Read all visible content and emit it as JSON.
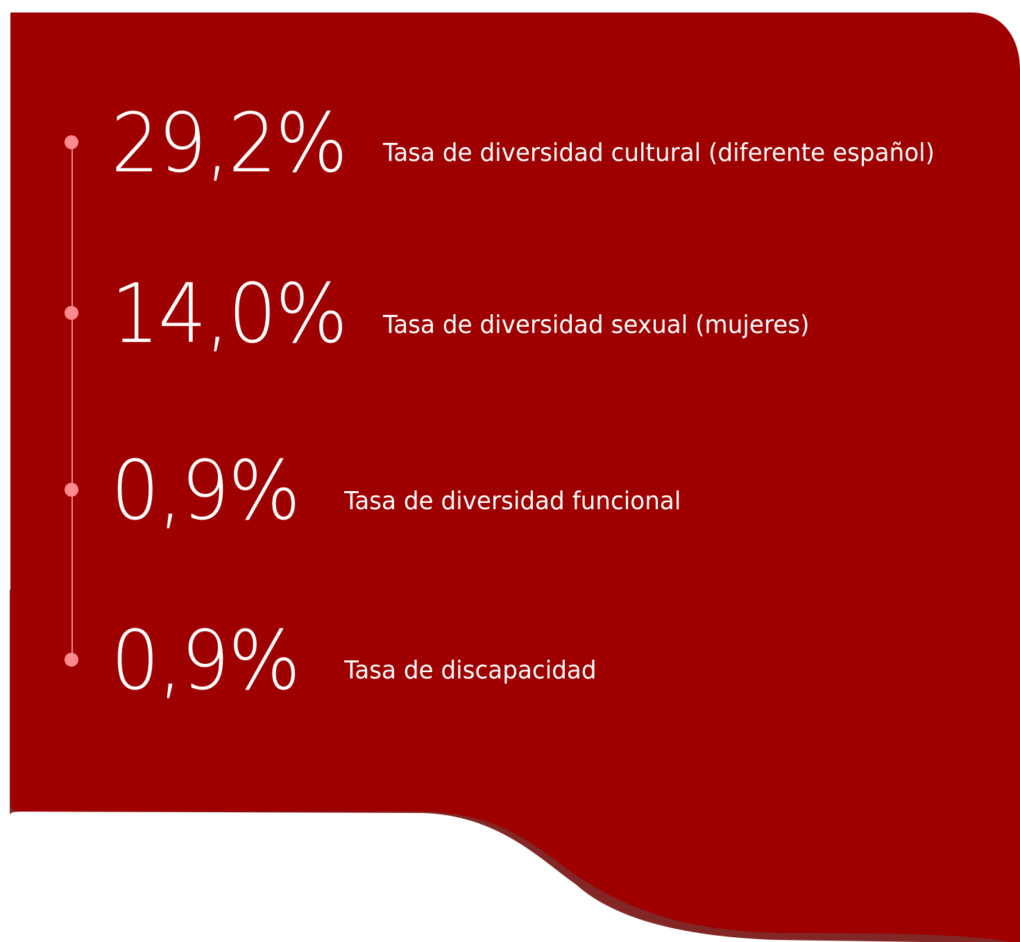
{
  "stats": [
    {
      "value": "29,2%",
      "label": "Tasa de diversidad cultural (diferente español)"
    },
    {
      "value": "14,0%",
      "label": "Tasa de diversidad sexual (mujeres)"
    },
    {
      "value": "0,9%",
      "label": "Tasa de diversidad funcional"
    },
    {
      "value": "0,9%",
      "label": "Tasa de discapacidad"
    }
  ],
  "colors": {
    "panel": "#9e0000",
    "shadow": "#822626",
    "dot": "#ff8a8e",
    "line": "#f08a8a",
    "text": "#ffffff"
  }
}
